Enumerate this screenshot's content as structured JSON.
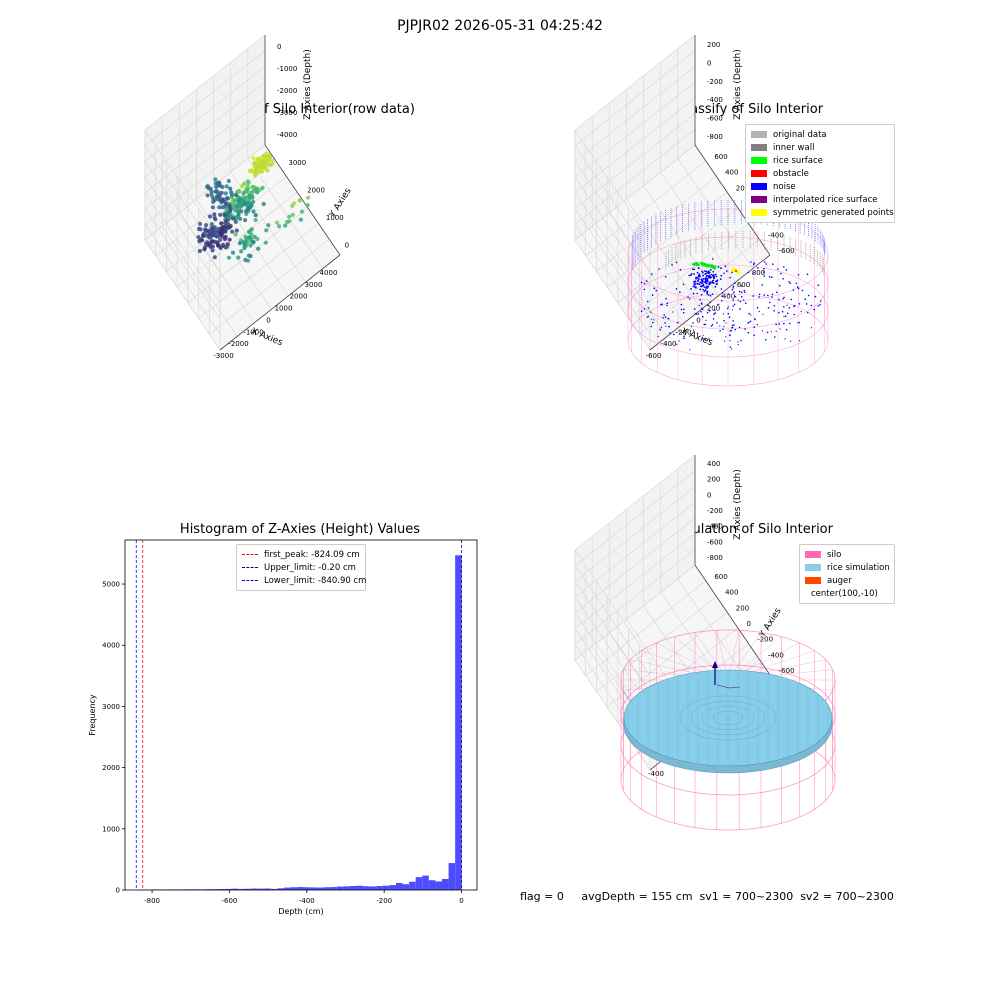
{
  "figure": {
    "suptitle": "PJPJR02 2026-05-31 04:25:42",
    "footer": "flag = 0     avgDepth = 155 cm  sv1 = 700~2300  sv2 = 700~2300"
  },
  "chart_data": [
    {
      "type": "scatter",
      "projection": "3d",
      "title": "3D Plot of Silo Interior(row data)",
      "xlabel": "X Axies",
      "ylabel": "Y Axies",
      "zlabel": "Z Axies (Depth)",
      "xticks": [
        "-3000",
        "-2000",
        "-1000",
        "0",
        "1000",
        "2000",
        "3000",
        "4000"
      ],
      "yticks": [
        "0",
        "1000",
        "2000",
        "3000"
      ],
      "zticks": [
        "0",
        "-1000",
        "-2000",
        "-3000",
        "-4000"
      ],
      "xlim": [
        -3500,
        4500
      ],
      "ylim": [
        -500,
        3800
      ],
      "zlim": [
        -4800,
        200
      ],
      "colormap": "viridis",
      "clusters": [
        {
          "x": 300,
          "y": 2400,
          "z": -1900,
          "spread": [
            300,
            250,
            120
          ],
          "count": 120
        },
        {
          "x": 600,
          "y": 1600,
          "z": -2800,
          "spread": [
            500,
            500,
            500
          ],
          "count": 110
        },
        {
          "x": -200,
          "y": 900,
          "z": -3900,
          "spread": [
            700,
            500,
            250
          ],
          "count": 110
        },
        {
          "x": -1500,
          "y": 1500,
          "z": -3500,
          "spread": [
            700,
            300,
            300
          ],
          "count": 50
        },
        {
          "x": 2500,
          "y": 1200,
          "z": -2900,
          "spread": [
            600,
            500,
            400
          ],
          "count": 40
        },
        {
          "x": 3200,
          "y": 2600,
          "z": -2500,
          "spread": [
            200,
            400,
            300
          ],
          "count": 15
        }
      ]
    },
    {
      "type": "scatter",
      "projection": "3d",
      "title": "3D classify of Silo Interior",
      "xlabel": "X Axies",
      "ylabel": "Y Axies",
      "zlabel": "Z Axies (Depth)",
      "xticks": [
        "-600",
        "-400",
        "-200",
        "0",
        "200",
        "400",
        "600",
        "800"
      ],
      "yticks": [
        "-600",
        "-400",
        "-200",
        "0",
        "200",
        "400",
        "600"
      ],
      "zticks": [
        "200",
        "0",
        "-200",
        "-400",
        "-600",
        "-800"
      ],
      "xlim": [
        -650,
        850
      ],
      "ylim": [
        -700,
        700
      ],
      "zlim": [
        -950,
        400
      ],
      "legend": [
        {
          "label": "original data",
          "color": "#b3b3b3"
        },
        {
          "label": "inner wall",
          "color": "#808080"
        },
        {
          "label": "rice surface",
          "color": "#00ff00"
        },
        {
          "label": "obstacle",
          "color": "#ff0000"
        },
        {
          "label": "noise",
          "color": "#0000ff"
        },
        {
          "label": "interpolated rice surface",
          "color": "#800080"
        },
        {
          "label": "symmetric generated points",
          "color": "#ffff00"
        }
      ],
      "silo_radius": 600,
      "silo_z_range": [
        -900,
        0
      ],
      "rice_surface_points": [
        [
          -150,
          200,
          -180
        ],
        [
          -120,
          180,
          -190
        ],
        [
          -80,
          170,
          -185
        ],
        [
          -50,
          160,
          -190
        ]
      ],
      "symmetric_points": [
        [
          60,
          120,
          -200
        ],
        [
          70,
          110,
          -210
        ]
      ]
    },
    {
      "type": "bar",
      "title": "Histogram of Z-Axies (Height) Values",
      "xlabel": "Depth (cm)",
      "ylabel": "Frequency",
      "xlim": [
        -870,
        40
      ],
      "ylim": [
        0,
        5720
      ],
      "xticks": [
        -800,
        -600,
        -400,
        -200,
        0
      ],
      "yticks": [
        0,
        1000,
        2000,
        3000,
        4000,
        5000
      ],
      "bar_color": "#4d4dff",
      "bin_width": 17,
      "bins": [
        {
          "x": -824,
          "count": 8
        },
        {
          "x": -807,
          "count": 8
        },
        {
          "x": -790,
          "count": 9
        },
        {
          "x": -773,
          "count": 8
        },
        {
          "x": -756,
          "count": 9
        },
        {
          "x": -739,
          "count": 10
        },
        {
          "x": -722,
          "count": 10
        },
        {
          "x": -705,
          "count": 12
        },
        {
          "x": -688,
          "count": 12
        },
        {
          "x": -671,
          "count": 11
        },
        {
          "x": -654,
          "count": 13
        },
        {
          "x": -637,
          "count": 14
        },
        {
          "x": -620,
          "count": 16
        },
        {
          "x": -603,
          "count": 18
        },
        {
          "x": -586,
          "count": 22
        },
        {
          "x": -569,
          "count": 18
        },
        {
          "x": -552,
          "count": 20
        },
        {
          "x": -535,
          "count": 24
        },
        {
          "x": -518,
          "count": 22
        },
        {
          "x": -501,
          "count": 24
        },
        {
          "x": -484,
          "count": 18
        },
        {
          "x": -467,
          "count": 28
        },
        {
          "x": -450,
          "count": 40
        },
        {
          "x": -433,
          "count": 45
        },
        {
          "x": -416,
          "count": 48
        },
        {
          "x": -399,
          "count": 45
        },
        {
          "x": -382,
          "count": 42
        },
        {
          "x": -365,
          "count": 40
        },
        {
          "x": -348,
          "count": 45
        },
        {
          "x": -331,
          "count": 48
        },
        {
          "x": -314,
          "count": 55
        },
        {
          "x": -297,
          "count": 60
        },
        {
          "x": -280,
          "count": 65
        },
        {
          "x": -263,
          "count": 70
        },
        {
          "x": -246,
          "count": 62
        },
        {
          "x": -229,
          "count": 58
        },
        {
          "x": -212,
          "count": 65
        },
        {
          "x": -195,
          "count": 70
        },
        {
          "x": -178,
          "count": 80
        },
        {
          "x": -161,
          "count": 115
        },
        {
          "x": -144,
          "count": 95
        },
        {
          "x": -127,
          "count": 135
        },
        {
          "x": -110,
          "count": 210
        },
        {
          "x": -93,
          "count": 235
        },
        {
          "x": -76,
          "count": 160
        },
        {
          "x": -59,
          "count": 140
        },
        {
          "x": -42,
          "count": 180
        },
        {
          "x": -25,
          "count": 440
        },
        {
          "x": -8,
          "count": 5470
        }
      ],
      "vlines": [
        {
          "x": -824.09,
          "color": "#ff0000",
          "label": "first_peak: -824.09 cm"
        },
        {
          "x": -0.2,
          "color": "#00008b",
          "label": "Upper_limit: -0.20 cm"
        },
        {
          "x": -840.9,
          "color": "#0000ff",
          "label": "Lower_limit: -840.90 cm"
        }
      ]
    },
    {
      "type": "surface",
      "projection": "3d",
      "title": "3D simulation of Silo Interior",
      "xlabel": "X Axies",
      "ylabel": "Y Axies",
      "zlabel": "Z Axies (Depth)",
      "xticks": [
        "-400",
        "-200",
        "0",
        "200",
        "400",
        "600"
      ],
      "yticks": [
        "-600",
        "-400",
        "-200",
        "0",
        "200",
        "400",
        "600"
      ],
      "zticks": [
        "400",
        "200",
        "0",
        "-200",
        "-400",
        "-600",
        "-800"
      ],
      "xlim": [
        -600,
        750
      ],
      "ylim": [
        -750,
        700
      ],
      "zlim": [
        -950,
        500
      ],
      "legend": [
        {
          "label": "silo",
          "color": "#ff69b4"
        },
        {
          "label": "rice simulation",
          "color": "#87ceeb"
        },
        {
          "label": "auger",
          "color": "#ff4500"
        },
        {
          "label": "center(100,-10)",
          "color": ""
        }
      ],
      "silo_radius": 600,
      "silo_z_range": [
        -900,
        0
      ],
      "rice_surface_depth": -155,
      "center": [
        100,
        -10
      ]
    }
  ]
}
